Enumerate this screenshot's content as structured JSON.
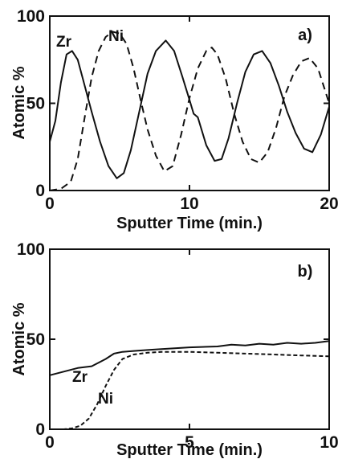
{
  "chart_data": [
    {
      "type": "line",
      "panel": "a)",
      "xlabel": "Sputter Time (min.)",
      "ylabel": "Atomic %",
      "xlim": [
        0,
        20
      ],
      "ylim": [
        0,
        100
      ],
      "xticks": [
        0,
        10,
        20
      ],
      "yticks": [
        0,
        50,
        100
      ],
      "series": [
        {
          "name": "Zr",
          "style": "solid",
          "x": [
            0,
            0.4,
            0.8,
            1.2,
            1.6,
            2.0,
            2.4,
            3.0,
            3.6,
            4.2,
            4.8,
            5.3,
            5.8,
            6.4,
            7.0,
            7.6,
            8.3,
            8.9,
            9.5,
            10.0,
            10.3,
            10.6,
            11.2,
            11.8,
            12.3,
            12.8,
            13.4,
            14.0,
            14.6,
            15.2,
            15.8,
            16.4,
            17.0,
            17.6,
            18.2,
            18.8,
            19.4,
            20.0
          ],
          "values": [
            28,
            40,
            62,
            78,
            80,
            75,
            63,
            45,
            28,
            14,
            7,
            10,
            23,
            45,
            67,
            80,
            86,
            80,
            65,
            52,
            44,
            42,
            26,
            17,
            18,
            30,
            50,
            68,
            78,
            80,
            73,
            60,
            45,
            33,
            24,
            22,
            32,
            48
          ]
        },
        {
          "name": "Ni",
          "style": "dashed",
          "x": [
            0,
            0.8,
            1.5,
            2.0,
            2.5,
            3.0,
            3.5,
            4.0,
            4.5,
            5.0,
            5.5,
            6.0,
            6.5,
            7.0,
            7.6,
            8.2,
            8.8,
            9.4,
            10.0,
            10.6,
            11.2,
            11.6,
            12.0,
            12.6,
            13.2,
            13.8,
            14.4,
            15.0,
            15.6,
            16.2,
            16.8,
            17.4,
            18.0,
            18.6,
            19.2,
            20.0
          ],
          "values": [
            0,
            1,
            5,
            18,
            42,
            65,
            80,
            88,
            91,
            90,
            84,
            70,
            52,
            35,
            20,
            11,
            14,
            32,
            53,
            70,
            80,
            82,
            78,
            64,
            44,
            28,
            18,
            16,
            22,
            36,
            54,
            66,
            74,
            76,
            70,
            50
          ]
        }
      ]
    },
    {
      "type": "line",
      "panel": "b)",
      "xlabel": "Sputter Time (min.)",
      "ylabel": "Atomic %",
      "xlim": [
        0,
        10
      ],
      "ylim": [
        0,
        100
      ],
      "xticks": [
        0,
        5,
        10
      ],
      "yticks": [
        0,
        50,
        100
      ],
      "series": [
        {
          "name": "Zr",
          "style": "solid",
          "x": [
            0,
            0.5,
            1.0,
            1.5,
            2.0,
            2.3,
            2.6,
            3.0,
            3.5,
            4.0,
            5.0,
            6.0,
            6.5,
            7.0,
            7.5,
            8.0,
            8.5,
            9.0,
            9.5,
            10.0
          ],
          "values": [
            30,
            32,
            34,
            35,
            39,
            42,
            43,
            43.5,
            44,
            44.5,
            45.5,
            46,
            47,
            46.5,
            47.5,
            47,
            48,
            47.5,
            48,
            49
          ]
        },
        {
          "name": "Ni",
          "style": "dashed",
          "x": [
            0,
            0.5,
            0.8,
            1.1,
            1.4,
            1.7,
            2.0,
            2.3,
            2.6,
            3.0,
            3.5,
            4.0,
            5.0,
            6.0,
            7.0,
            8.0,
            9.0,
            10.0
          ],
          "values": [
            0,
            0,
            0.5,
            2,
            6,
            14,
            24,
            33,
            39,
            41.5,
            42.5,
            43,
            43,
            42.5,
            42,
            41.5,
            41,
            40.5
          ]
        }
      ]
    }
  ]
}
